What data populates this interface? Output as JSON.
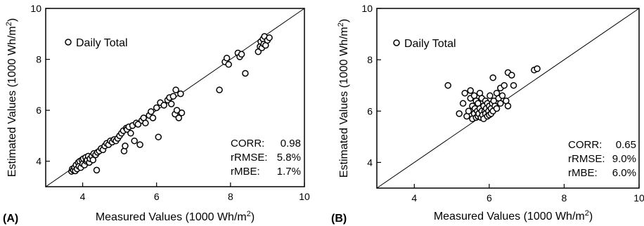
{
  "chart_data": [
    {
      "type": "scatter",
      "panel_label": "(A)",
      "xlabel": "Measured Values (1000 Wh/m",
      "ylabel": "Estimated Values (1000 Wh/m",
      "unit_sup": "2",
      "unit_close": ")",
      "xlim": [
        3,
        10
      ],
      "ylim": [
        3,
        10
      ],
      "xticks": [
        "4",
        "6",
        "8",
        "10"
      ],
      "yticks": [
        "4",
        "6",
        "8",
        "10"
      ],
      "grid": false,
      "reference_line": "1:1",
      "legend": {
        "label": "Daily Total",
        "placement": "top-left"
      },
      "stats": [
        {
          "label": "CORR:",
          "value": "0.98"
        },
        {
          "label": "rRMSE:",
          "value": "5.8%"
        },
        {
          "label": "rMBE:",
          "value": "1.7%"
        }
      ],
      "series": [
        {
          "marker": "open-circle",
          "points": [
            [
              3.7,
              3.6
            ],
            [
              3.72,
              3.7
            ],
            [
              3.75,
              3.65
            ],
            [
              3.78,
              3.75
            ],
            [
              3.8,
              3.62
            ],
            [
              3.82,
              3.85
            ],
            [
              3.85,
              3.7
            ],
            [
              3.88,
              3.95
            ],
            [
              3.9,
              3.8
            ],
            [
              3.92,
              4.0
            ],
            [
              3.95,
              3.75
            ],
            [
              3.98,
              4.05
            ],
            [
              4.0,
              3.9
            ],
            [
              4.02,
              4.1
            ],
            [
              4.05,
              3.85
            ],
            [
              4.08,
              4.15
            ],
            [
              4.1,
              4.0
            ],
            [
              4.12,
              4.05
            ],
            [
              4.15,
              4.2
            ],
            [
              4.18,
              3.95
            ],
            [
              4.2,
              4.1
            ],
            [
              4.25,
              4.2
            ],
            [
              4.28,
              4.05
            ],
            [
              4.3,
              4.3
            ],
            [
              4.35,
              4.25
            ],
            [
              4.38,
              3.65
            ],
            [
              4.4,
              4.35
            ],
            [
              4.45,
              4.4
            ],
            [
              4.5,
              4.5
            ],
            [
              4.55,
              4.45
            ],
            [
              4.6,
              4.6
            ],
            [
              4.65,
              4.7
            ],
            [
              4.7,
              4.65
            ],
            [
              4.75,
              4.8
            ],
            [
              4.8,
              4.75
            ],
            [
              4.85,
              4.85
            ],
            [
              4.9,
              4.8
            ],
            [
              4.95,
              4.9
            ],
            [
              5.0,
              5.0
            ],
            [
              5.05,
              5.1
            ],
            [
              5.1,
              5.2
            ],
            [
              5.12,
              4.4
            ],
            [
              5.15,
              4.6
            ],
            [
              5.18,
              5.3
            ],
            [
              5.2,
              5.25
            ],
            [
              5.25,
              5.35
            ],
            [
              5.3,
              5.1
            ],
            [
              5.35,
              5.4
            ],
            [
              5.4,
              4.8
            ],
            [
              5.45,
              5.5
            ],
            [
              5.5,
              5.45
            ],
            [
              5.55,
              4.65
            ],
            [
              5.6,
              5.6
            ],
            [
              5.65,
              5.7
            ],
            [
              5.7,
              5.5
            ],
            [
              5.8,
              5.8
            ],
            [
              5.85,
              5.95
            ],
            [
              5.9,
              5.7
            ],
            [
              6.0,
              6.1
            ],
            [
              6.05,
              4.95
            ],
            [
              6.1,
              6.3
            ],
            [
              6.2,
              6.2
            ],
            [
              6.3,
              6.4
            ],
            [
              6.35,
              6.5
            ],
            [
              6.4,
              6.25
            ],
            [
              6.45,
              6.55
            ],
            [
              6.5,
              5.85
            ],
            [
              6.52,
              6.8
            ],
            [
              6.55,
              6.0
            ],
            [
              6.6,
              5.7
            ],
            [
              6.65,
              6.65
            ],
            [
              6.68,
              5.9
            ],
            [
              7.7,
              6.8
            ],
            [
              7.85,
              7.9
            ],
            [
              7.9,
              8.05
            ],
            [
              7.95,
              7.8
            ],
            [
              8.2,
              8.25
            ],
            [
              8.25,
              8.1
            ],
            [
              8.3,
              8.2
            ],
            [
              8.4,
              7.45
            ],
            [
              8.75,
              8.3
            ],
            [
              8.8,
              8.5
            ],
            [
              8.82,
              8.7
            ],
            [
              8.85,
              8.45
            ],
            [
              8.88,
              8.8
            ],
            [
              8.9,
              8.6
            ],
            [
              8.92,
              8.9
            ],
            [
              8.95,
              8.55
            ],
            [
              9.0,
              8.75
            ],
            [
              9.05,
              8.85
            ]
          ]
        }
      ]
    },
    {
      "type": "scatter",
      "panel_label": "(B)",
      "xlabel": "Measured Values (1000 Wh/m",
      "ylabel": "Estimated Values (1000 Wh/m",
      "unit_sup": "2",
      "unit_close": ")",
      "xlim": [
        3,
        10
      ],
      "ylim": [
        3,
        10
      ],
      "xticks": [
        "4",
        "6",
        "8",
        "10"
      ],
      "yticks": [
        "4",
        "6",
        "8",
        "10"
      ],
      "grid": false,
      "reference_line": "1:1",
      "legend": {
        "label": "Daily Total",
        "placement": "top-left"
      },
      "stats": [
        {
          "label": "CORR:",
          "value": "0.65"
        },
        {
          "label": "rRMSE:",
          "value": "9.0%"
        },
        {
          "label": "rMBE:",
          "value": "6.0%"
        }
      ],
      "series": [
        {
          "marker": "open-circle",
          "points": [
            [
              4.9,
              7.0
            ],
            [
              5.2,
              5.9
            ],
            [
              5.3,
              6.3
            ],
            [
              5.35,
              6.7
            ],
            [
              5.4,
              5.8
            ],
            [
              5.45,
              6.0
            ],
            [
              5.5,
              6.5
            ],
            [
              5.5,
              6.8
            ],
            [
              5.55,
              5.7
            ],
            [
              5.55,
              6.2
            ],
            [
              5.6,
              6.6
            ],
            [
              5.6,
              5.9
            ],
            [
              5.62,
              6.1
            ],
            [
              5.65,
              5.75
            ],
            [
              5.65,
              6.4
            ],
            [
              5.68,
              6.0
            ],
            [
              5.7,
              5.8
            ],
            [
              5.7,
              6.3
            ],
            [
              5.72,
              5.9
            ],
            [
              5.75,
              6.1
            ],
            [
              5.75,
              6.7
            ],
            [
              5.78,
              5.75
            ],
            [
              5.8,
              6.0
            ],
            [
              5.8,
              6.5
            ],
            [
              5.82,
              5.85
            ],
            [
              5.85,
              6.2
            ],
            [
              5.85,
              5.7
            ],
            [
              5.88,
              6.0
            ],
            [
              5.9,
              5.9
            ],
            [
              5.9,
              6.4
            ],
            [
              5.92,
              6.1
            ],
            [
              5.95,
              5.8
            ],
            [
              5.95,
              6.3
            ],
            [
              5.98,
              6.0
            ],
            [
              6.0,
              6.2
            ],
            [
              6.0,
              5.85
            ],
            [
              6.02,
              6.6
            ],
            [
              6.05,
              6.1
            ],
            [
              6.05,
              5.9
            ],
            [
              6.08,
              6.3
            ],
            [
              6.1,
              6.0
            ],
            [
              6.1,
              7.3
            ],
            [
              6.12,
              6.4
            ],
            [
              6.15,
              6.2
            ],
            [
              6.2,
              6.7
            ],
            [
              6.2,
              6.1
            ],
            [
              6.25,
              6.5
            ],
            [
              6.3,
              6.3
            ],
            [
              6.3,
              6.9
            ],
            [
              6.35,
              6.6
            ],
            [
              6.4,
              7.0
            ],
            [
              6.45,
              6.4
            ],
            [
              6.5,
              7.5
            ],
            [
              6.6,
              7.4
            ],
            [
              6.65,
              7.0
            ],
            [
              6.5,
              6.2
            ],
            [
              7.2,
              7.6
            ],
            [
              7.28,
              7.65
            ]
          ]
        }
      ]
    }
  ]
}
